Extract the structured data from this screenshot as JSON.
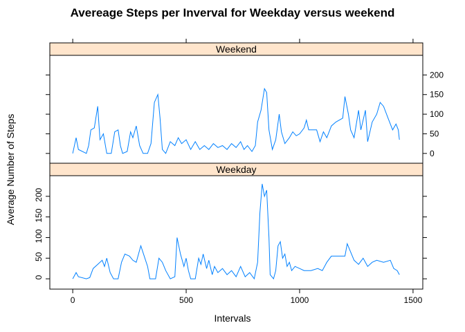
{
  "chart_data": {
    "type": "line",
    "title": "Avereage Steps per Inverval for Weekday versus weekend",
    "x_label": "Intervals",
    "y_label": "Average Number of Steps",
    "xlim": [
      -101,
      1543
    ],
    "ylim": [
      -25,
      250
    ],
    "xticks": [
      0,
      500,
      1000,
      1500
    ],
    "yticks": [
      0,
      50,
      100,
      150,
      200
    ],
    "color": "#0080ff",
    "strip_color": "#ffe5cc",
    "series": [
      {
        "name": "Weekend",
        "x": [
          0,
          15,
          25,
          60,
          70,
          80,
          95,
          110,
          120,
          135,
          150,
          170,
          185,
          200,
          210,
          220,
          240,
          255,
          265,
          280,
          295,
          310,
          330,
          345,
          360,
          375,
          385,
          395,
          410,
          430,
          450,
          465,
          480,
          500,
          520,
          540,
          560,
          580,
          600,
          620,
          640,
          660,
          680,
          700,
          720,
          740,
          755,
          770,
          790,
          805,
          815,
          830,
          845,
          855,
          865,
          880,
          895,
          910,
          920,
          935,
          955,
          970,
          985,
          1000,
          1020,
          1030,
          1040,
          1055,
          1075,
          1090,
          1105,
          1120,
          1140,
          1160,
          1190,
          1200,
          1215,
          1225,
          1240,
          1260,
          1270,
          1290,
          1300,
          1320,
          1340,
          1355,
          1370,
          1390,
          1410,
          1425,
          1435,
          1440
        ],
        "values": [
          0,
          40,
          10,
          0,
          20,
          60,
          65,
          120,
          35,
          50,
          0,
          0,
          55,
          60,
          20,
          0,
          5,
          55,
          40,
          70,
          20,
          0,
          0,
          25,
          130,
          150,
          90,
          10,
          0,
          30,
          20,
          40,
          25,
          35,
          10,
          30,
          10,
          20,
          10,
          25,
          15,
          20,
          10,
          25,
          15,
          30,
          10,
          20,
          5,
          20,
          80,
          110,
          165,
          155,
          60,
          10,
          35,
          100,
          55,
          25,
          40,
          55,
          45,
          50,
          65,
          85,
          60,
          60,
          60,
          30,
          55,
          40,
          70,
          80,
          90,
          145,
          100,
          60,
          40,
          110,
          60,
          110,
          30,
          80,
          100,
          130,
          120,
          90,
          60,
          75,
          60,
          35
        ]
      },
      {
        "name": "Weekday",
        "x": [
          0,
          15,
          25,
          60,
          75,
          90,
          110,
          130,
          140,
          150,
          165,
          180,
          200,
          215,
          230,
          250,
          265,
          280,
          290,
          300,
          315,
          330,
          340,
          365,
          380,
          395,
          410,
          430,
          450,
          460,
          475,
          490,
          500,
          510,
          520,
          540,
          555,
          565,
          575,
          590,
          600,
          615,
          625,
          640,
          660,
          680,
          700,
          720,
          740,
          760,
          780,
          800,
          815,
          825,
          835,
          845,
          855,
          865,
          870,
          885,
          895,
          905,
          915,
          925,
          935,
          945,
          955,
          965,
          980,
          1000,
          1020,
          1050,
          1080,
          1100,
          1120,
          1140,
          1170,
          1200,
          1210,
          1225,
          1240,
          1260,
          1280,
          1300,
          1320,
          1340,
          1370,
          1400,
          1415,
          1430,
          1440
        ],
        "values": [
          0,
          15,
          5,
          0,
          3,
          25,
          35,
          45,
          30,
          50,
          15,
          0,
          0,
          40,
          60,
          55,
          45,
          40,
          60,
          80,
          55,
          30,
          0,
          0,
          50,
          40,
          20,
          0,
          5,
          100,
          60,
          30,
          50,
          20,
          0,
          0,
          50,
          35,
          60,
          25,
          45,
          10,
          30,
          15,
          25,
          10,
          20,
          5,
          30,
          5,
          15,
          0,
          40,
          160,
          230,
          200,
          215,
          100,
          10,
          0,
          20,
          80,
          90,
          50,
          60,
          30,
          40,
          20,
          30,
          25,
          20,
          20,
          25,
          20,
          40,
          55,
          55,
          55,
          85,
          65,
          45,
          35,
          50,
          30,
          40,
          45,
          40,
          45,
          25,
          20,
          10
        ]
      }
    ]
  }
}
